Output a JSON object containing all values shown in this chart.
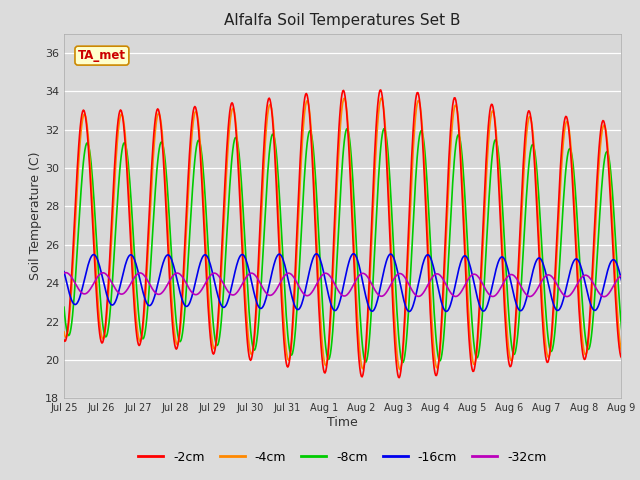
{
  "title": "Alfalfa Soil Temperatures Set B",
  "xlabel": "Time",
  "ylabel": "Soil Temperature (C)",
  "ylim": [
    18,
    37
  ],
  "yticks": [
    18,
    20,
    22,
    24,
    26,
    28,
    30,
    32,
    34,
    36
  ],
  "background_color": "#dcdcdc",
  "plot_bg_color": "#d8d8d8",
  "legend_label": "TA_met",
  "legend_bg": "#ffffcc",
  "legend_border": "#cc8800",
  "colors": {
    "-2cm": "#ff0000",
    "-4cm": "#ff8800",
    "-8cm": "#00cc00",
    "-16cm": "#0000ee",
    "-32cm": "#bb00bb"
  },
  "lw": 1.2,
  "x_tick_labels": [
    "Jul 25",
    "Jul 26",
    "Jul 27",
    "Jul 28",
    "Jul 29",
    "Jul 30",
    "Jul 31",
    "Aug 1",
    "Aug 2",
    "Aug 3",
    "Aug 4",
    "Aug 5",
    "Aug 6",
    "Aug 7",
    "Aug 8",
    "Aug 9"
  ],
  "n_days": 16,
  "pts_per_day": 48
}
